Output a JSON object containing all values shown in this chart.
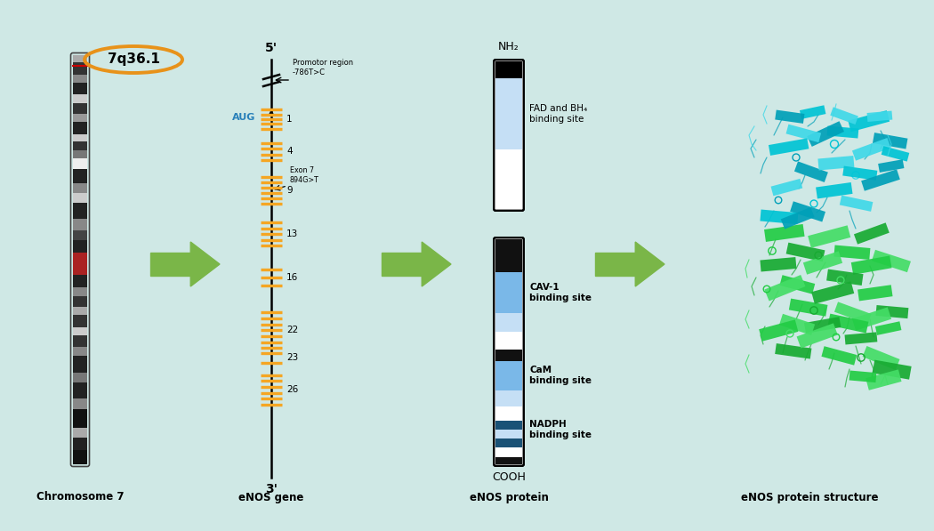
{
  "bg_color": "#cfe8e5",
  "arrow_color": "#7ab648",
  "orange_color": "#f5a623",
  "orange_ellipse_color": "#e8921a",
  "label_7q36": "7q36.1",
  "chr_label": "Chromosome 7",
  "gene_label": "eNOS gene",
  "protein_label": "eNOS protein",
  "structure_label": "eNOS protein structure",
  "promotor_text": "Promotor region\n-786T>C",
  "aug_text": "AUG",
  "exon7_text": "Exon 7\n894G>T",
  "five_prime": "5'",
  "three_prime": "3'",
  "nh2_text": "NH₂",
  "cooh_text": "COOH",
  "fad_bh4_text": "FAD and BH₄\nbinding site",
  "cav1_text": "CAV-1\nbinding site",
  "cam_text": "CaM\nbinding site",
  "nadph_text": "NADPH\nbinding site",
  "light_blue": "#c5dff5",
  "medium_blue": "#7ab8e8",
  "darker_blue": "#5b9fd4",
  "dark_teal": "#1a5276",
  "aug_color": "#2980b9",
  "cyan_protein": "#00c8d4",
  "green_protein": "#22cc44"
}
